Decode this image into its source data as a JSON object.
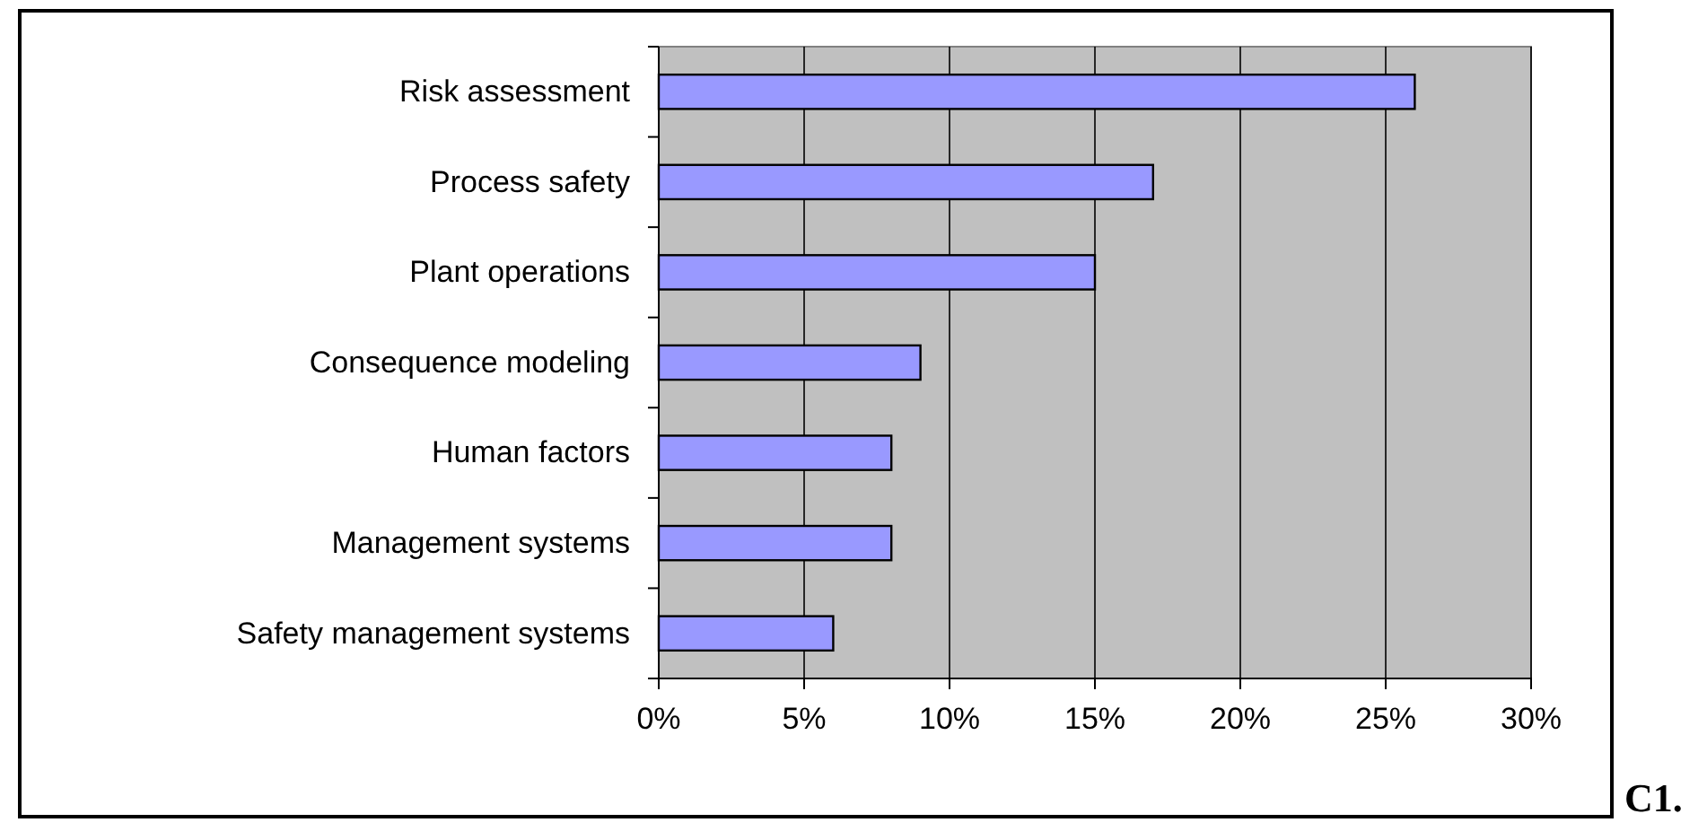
{
  "chart_data": {
    "type": "bar",
    "orientation": "horizontal",
    "categories": [
      "Risk assessment",
      "Process safety",
      "Plant operations",
      "Consequence modeling",
      "Human factors",
      "Management systems",
      "Safety management systems"
    ],
    "values": [
      26,
      17,
      15,
      9,
      8,
      8,
      6
    ],
    "color": "#9999ff",
    "xlim": [
      0,
      30
    ],
    "xticks": [
      {
        "value": 0,
        "label": "0%"
      },
      {
        "value": 5,
        "label": "5%"
      },
      {
        "value": 10,
        "label": "10%"
      },
      {
        "value": 15,
        "label": "15%"
      },
      {
        "value": 20,
        "label": "20%"
      },
      {
        "value": 25,
        "label": "25%"
      },
      {
        "value": 30,
        "label": "30%"
      }
    ],
    "grid": "x",
    "annotations": [
      "C1."
    ]
  }
}
